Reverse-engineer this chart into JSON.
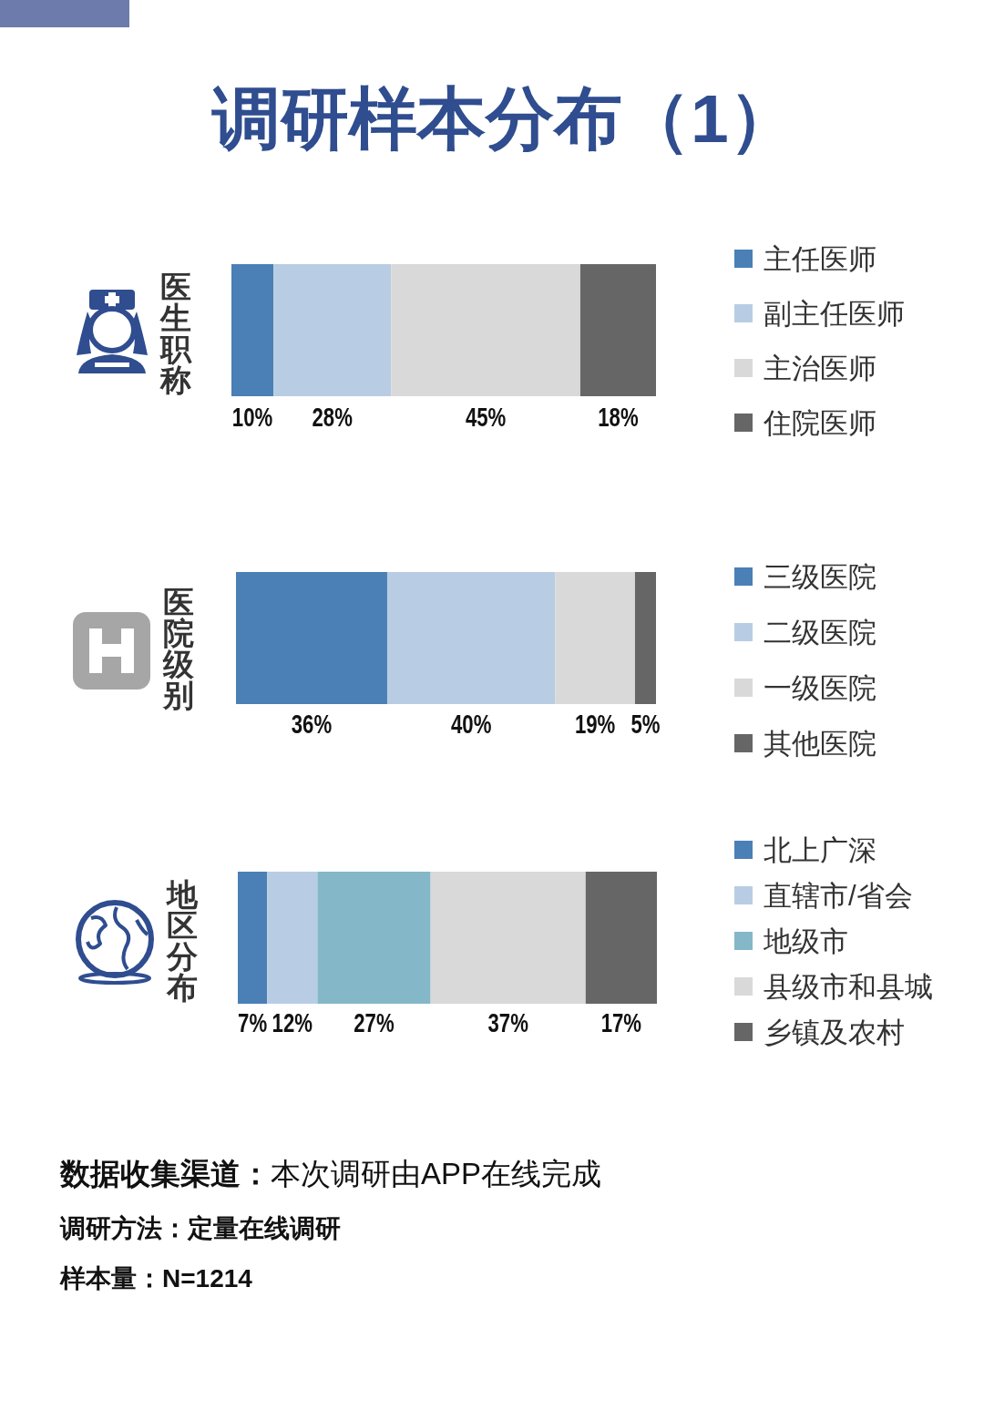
{
  "chart_data": [
    {
      "type": "bar",
      "orientation": "horizontal",
      "stacked": true,
      "title": "调研样本分布（1）",
      "categories": [
        "医生职称"
      ],
      "legend": "right",
      "series": [
        {
          "name": "主任医师",
          "color": "#4a80b5",
          "values": [
            10
          ],
          "value_labels": [
            "10%"
          ]
        },
        {
          "name": "副主任医师",
          "color": "#b8cde3",
          "values": [
            28
          ],
          "value_labels": [
            "28%"
          ]
        },
        {
          "name": "主治医师",
          "color": "#d9d9d9",
          "values": [
            45
          ],
          "value_labels": [
            "45%"
          ]
        },
        {
          "name": "住院医师",
          "color": "#666666",
          "values": [
            18
          ],
          "value_labels": [
            "18%"
          ]
        }
      ]
    },
    {
      "type": "bar",
      "orientation": "horizontal",
      "stacked": true,
      "categories": [
        "医院级别"
      ],
      "legend": "right",
      "series": [
        {
          "name": "三级医院",
          "color": "#4a80b5",
          "values": [
            36
          ],
          "value_labels": [
            "36%"
          ]
        },
        {
          "name": "二级医院",
          "color": "#b8cde3",
          "values": [
            40
          ],
          "value_labels": [
            "40%"
          ]
        },
        {
          "name": "一级医院",
          "color": "#d9d9d9",
          "values": [
            19
          ],
          "value_labels": [
            "19%"
          ]
        },
        {
          "name": "其他医院",
          "color": "#666666",
          "values": [
            5
          ],
          "value_labels": [
            "5%"
          ]
        }
      ]
    },
    {
      "type": "bar",
      "orientation": "horizontal",
      "stacked": true,
      "categories": [
        "地区分布"
      ],
      "legend": "right",
      "series": [
        {
          "name": "北上广深",
          "color": "#4a80b5",
          "values": [
            7
          ],
          "value_labels": [
            "7%"
          ]
        },
        {
          "name": "直辖市/省会",
          "color": "#b8cde3",
          "values": [
            12
          ],
          "value_labels": [
            "12%"
          ]
        },
        {
          "name": "地级市",
          "color": "#84b7c8",
          "values": [
            27
          ],
          "value_labels": [
            "27%"
          ]
        },
        {
          "name": "县级市和县城",
          "color": "#d9d9d9",
          "values": [
            37
          ],
          "value_labels": [
            "37%"
          ]
        },
        {
          "name": "乡镇及农村",
          "color": "#666666",
          "values": [
            17
          ],
          "value_labels": [
            "17%"
          ]
        }
      ],
      "annotations": [
        "**数据收集渠道：**本次调研由APP在线完成",
        "调研方法：定量在线调研",
        "样本量：N=1214"
      ]
    }
  ]
}
